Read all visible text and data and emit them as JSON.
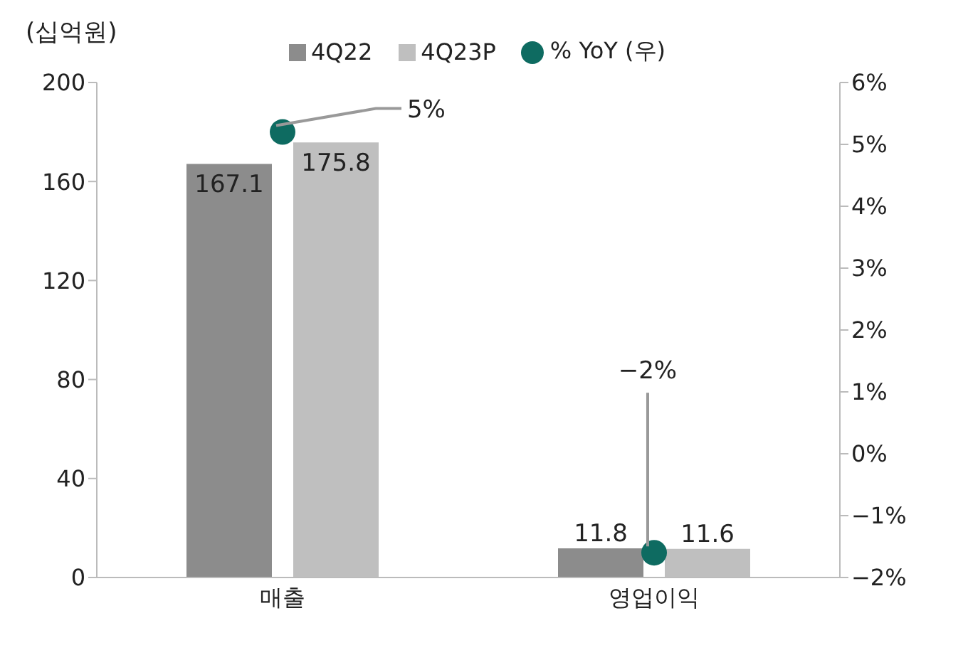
{
  "chart_data": {
    "type": "bar",
    "ylabel": "(십억원)",
    "categories": [
      "매출",
      "영업이익"
    ],
    "series": [
      {
        "name": "4Q22",
        "color": "#8c8c8c",
        "values": [
          167.1,
          11.8
        ]
      },
      {
        "name": "4Q23P",
        "color": "#bfbfbf",
        "values": [
          175.8,
          11.6
        ]
      },
      {
        "name": "% YoY (우)",
        "type": "scatter",
        "axis": "y2",
        "color": "#0e6b61",
        "values": [
          5.2,
          -1.6
        ],
        "value_labels": [
          "5%",
          "−2%"
        ]
      }
    ],
    "data_labels": true,
    "ylim": [
      0,
      200
    ],
    "yticks": [
      0,
      40,
      80,
      120,
      160,
      200
    ],
    "y2lim": [
      -2,
      6
    ],
    "y2ticks": [
      {
        "value": -2,
        "label": "−2%"
      },
      {
        "value": -1,
        "label": "−1%"
      },
      {
        "value": 0,
        "label": "0%"
      },
      {
        "value": 1,
        "label": "1%"
      },
      {
        "value": 2,
        "label": "2%"
      },
      {
        "value": 3,
        "label": "3%"
      },
      {
        "value": 4,
        "label": "4%"
      },
      {
        "value": 5,
        "label": "5%"
      },
      {
        "value": 6,
        "label": "6%"
      }
    ],
    "legend": "top",
    "marker": "circle"
  }
}
